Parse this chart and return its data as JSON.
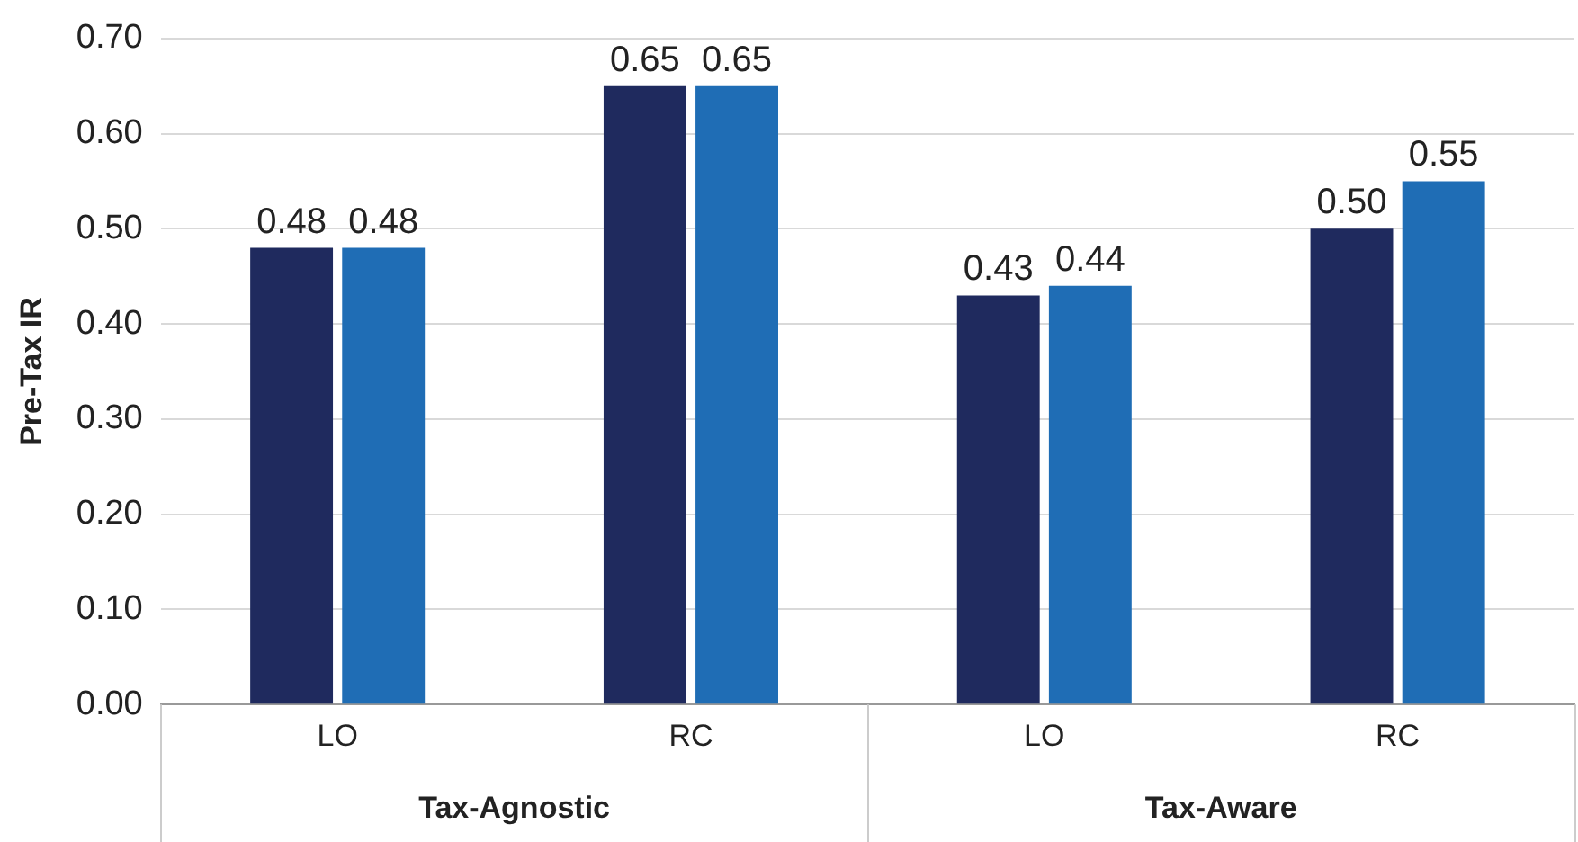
{
  "chart_data": {
    "type": "bar",
    "ylabel": "Pre-Tax IR",
    "categories": [
      "LO",
      "RC",
      "LO",
      "RC"
    ],
    "annotations": [
      "Tax-Agnostic",
      "Tax-Aware"
    ],
    "series": [
      {
        "color": "#1f2a5e",
        "values": [
          0.48,
          0.65,
          0.43,
          0.5
        ],
        "value_labels": [
          "0.48",
          "0.65",
          "0.43",
          "0.50"
        ]
      },
      {
        "color": "#1f6db5",
        "values": [
          0.48,
          0.65,
          0.44,
          0.55
        ],
        "value_labels": [
          "0.48",
          "0.65",
          "0.44",
          "0.55"
        ]
      }
    ],
    "ylim": [
      0,
      0.7
    ],
    "yticks": [
      {
        "value": 0,
        "label": "0.00"
      },
      {
        "value": 0.1,
        "label": "0.10"
      },
      {
        "value": 0.2,
        "label": "0.20"
      },
      {
        "value": 0.3,
        "label": "0.30"
      },
      {
        "value": 0.4,
        "label": "0.40"
      },
      {
        "value": 0.5,
        "label": "0.50"
      },
      {
        "value": 0.6,
        "label": "0.60"
      },
      {
        "value": 0.7,
        "label": "0.70"
      }
    ],
    "grid": "y",
    "legend": false
  }
}
